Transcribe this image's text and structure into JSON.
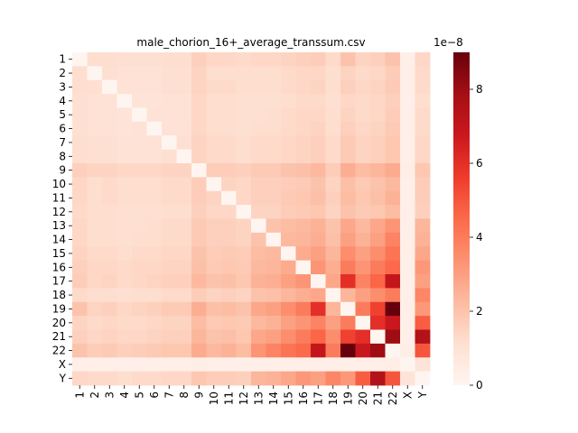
{
  "chart_data": {
    "type": "heatmap",
    "title": "male_chorion_16+_average_transsum.csv",
    "xlabel": "",
    "ylabel": "",
    "x_categories": [
      "1",
      "2",
      "3",
      "4",
      "5",
      "6",
      "7",
      "8",
      "9",
      "10",
      "11",
      "12",
      "13",
      "14",
      "15",
      "16",
      "17",
      "18",
      "19",
      "20",
      "21",
      "22",
      "X",
      "Y"
    ],
    "y_categories": [
      "1",
      "2",
      "3",
      "4",
      "5",
      "6",
      "7",
      "8",
      "9",
      "10",
      "11",
      "12",
      "13",
      "14",
      "15",
      "16",
      "17",
      "18",
      "19",
      "20",
      "21",
      "22",
      "X",
      "Y"
    ],
    "colormap": "Reds",
    "colorbar": {
      "min": 0,
      "max": 9,
      "ticks": [
        0,
        2,
        4,
        6,
        8
      ],
      "tick_labels": [
        "0",
        "2",
        "4",
        "6",
        "8"
      ],
      "offset_label": "1e−8"
    },
    "diagonal": "blank",
    "values_note": "",
    "values": [
      [
        0,
        1.2,
        1.2,
        1.1,
        1.1,
        1.1,
        1.2,
        1.2,
        1.6,
        1.4,
        1.4,
        1.3,
        1.4,
        1.4,
        1.5,
        1.6,
        1.7,
        1.3,
        2.0,
        1.5,
        1.6,
        2.0,
        0.3,
        1.4
      ],
      [
        1.2,
        0,
        1.1,
        1.0,
        1.0,
        1.0,
        1.1,
        1.1,
        1.5,
        1.2,
        1.2,
        1.2,
        1.2,
        1.2,
        1.3,
        1.4,
        1.4,
        1.2,
        1.5,
        1.3,
        1.4,
        1.7,
        0.3,
        1.3
      ],
      [
        1.2,
        1.1,
        0,
        1.0,
        1.0,
        1.0,
        1.1,
        1.1,
        1.5,
        1.3,
        1.3,
        1.2,
        1.2,
        1.2,
        1.3,
        1.4,
        1.5,
        1.2,
        1.6,
        1.4,
        1.5,
        1.8,
        0.3,
        1.3
      ],
      [
        1.1,
        1.0,
        1.0,
        0,
        0.9,
        0.9,
        1.0,
        1.0,
        1.4,
        1.2,
        1.2,
        1.1,
        1.1,
        1.1,
        1.2,
        1.3,
        1.3,
        1.1,
        1.4,
        1.3,
        1.4,
        1.6,
        0.3,
        1.2
      ],
      [
        1.1,
        1.0,
        1.0,
        0.9,
        0,
        1.0,
        1.0,
        1.0,
        1.4,
        1.2,
        1.2,
        1.1,
        1.1,
        1.2,
        1.3,
        1.4,
        1.4,
        1.2,
        1.5,
        1.3,
        1.4,
        1.7,
        0.3,
        1.3
      ],
      [
        1.1,
        1.0,
        1.0,
        0.9,
        1.0,
        0,
        1.0,
        1.0,
        1.4,
        1.2,
        1.2,
        1.1,
        1.2,
        1.2,
        1.3,
        1.4,
        1.5,
        1.2,
        1.6,
        1.4,
        1.5,
        1.8,
        0.3,
        1.3
      ],
      [
        1.2,
        1.1,
        1.1,
        1.0,
        1.0,
        1.0,
        0,
        1.1,
        1.5,
        1.3,
        1.3,
        1.2,
        1.3,
        1.3,
        1.4,
        1.5,
        1.6,
        1.3,
        1.8,
        1.5,
        1.6,
        1.9,
        0.3,
        1.4
      ],
      [
        1.2,
        1.1,
        1.1,
        1.0,
        1.0,
        1.0,
        1.1,
        0,
        1.5,
        1.3,
        1.3,
        1.2,
        1.3,
        1.3,
        1.4,
        1.5,
        1.6,
        1.3,
        1.8,
        1.5,
        1.6,
        1.9,
        0.3,
        1.4
      ],
      [
        1.6,
        1.5,
        1.5,
        1.4,
        1.4,
        1.4,
        1.5,
        1.5,
        0,
        1.7,
        1.7,
        1.6,
        1.8,
        1.8,
        2.0,
        2.1,
        2.3,
        1.7,
        2.6,
        2.2,
        2.4,
        2.7,
        0.4,
        1.9
      ],
      [
        1.4,
        1.2,
        1.3,
        1.2,
        1.2,
        1.2,
        1.3,
        1.3,
        1.7,
        0,
        1.5,
        1.4,
        1.6,
        1.6,
        1.7,
        1.8,
        2.0,
        1.5,
        2.1,
        1.8,
        2.0,
        2.3,
        0.3,
        1.7
      ],
      [
        1.4,
        1.2,
        1.3,
        1.2,
        1.2,
        1.2,
        1.3,
        1.3,
        1.7,
        1.5,
        0,
        1.4,
        1.6,
        1.6,
        1.8,
        1.9,
        2.1,
        1.6,
        2.2,
        1.9,
        2.1,
        2.5,
        0.3,
        1.7
      ],
      [
        1.3,
        1.2,
        1.2,
        1.1,
        1.1,
        1.1,
        1.2,
        1.2,
        1.6,
        1.4,
        1.4,
        0,
        1.5,
        1.5,
        1.7,
        1.8,
        1.9,
        1.5,
        2.0,
        1.8,
        1.9,
        2.2,
        0.3,
        1.6
      ],
      [
        1.4,
        1.2,
        1.2,
        1.1,
        1.1,
        1.2,
        1.3,
        1.3,
        1.8,
        1.6,
        1.6,
        1.5,
        0,
        2.0,
        2.2,
        2.3,
        2.5,
        2.0,
        2.8,
        2.3,
        2.8,
        3.3,
        0.3,
        2.4
      ],
      [
        1.4,
        1.2,
        1.2,
        1.1,
        1.2,
        1.2,
        1.3,
        1.3,
        1.8,
        1.6,
        1.6,
        1.5,
        2.0,
        0,
        2.3,
        2.4,
        2.6,
        2.1,
        3.0,
        2.5,
        3.0,
        3.8,
        0.3,
        2.5
      ],
      [
        1.5,
        1.3,
        1.3,
        1.2,
        1.3,
        1.3,
        1.4,
        1.4,
        2.0,
        1.7,
        1.8,
        1.7,
        2.2,
        2.3,
        0,
        2.7,
        3.0,
        2.4,
        3.5,
        3.0,
        3.5,
        4.2,
        0.3,
        2.8
      ],
      [
        1.6,
        1.4,
        1.4,
        1.3,
        1.4,
        1.4,
        1.5,
        1.5,
        2.1,
        1.8,
        1.9,
        1.8,
        2.3,
        2.4,
        2.7,
        0,
        3.3,
        2.6,
        4.0,
        3.3,
        4.0,
        4.5,
        0.3,
        3.2
      ],
      [
        1.7,
        1.4,
        1.5,
        1.3,
        1.4,
        1.5,
        1.6,
        1.6,
        2.3,
        2.0,
        2.1,
        1.9,
        2.5,
        2.6,
        3.0,
        3.3,
        0,
        2.8,
        6.0,
        3.8,
        4.6,
        7.0,
        0.3,
        3.0
      ],
      [
        1.3,
        1.2,
        1.2,
        1.1,
        1.2,
        1.2,
        1.3,
        1.3,
        1.7,
        1.5,
        1.6,
        1.5,
        2.0,
        2.1,
        2.4,
        2.6,
        2.8,
        0,
        2.4,
        3.0,
        3.5,
        4.0,
        0.3,
        3.7
      ],
      [
        2.0,
        1.5,
        1.6,
        1.4,
        1.5,
        1.6,
        1.8,
        1.8,
        2.6,
        2.1,
        2.2,
        2.0,
        2.8,
        3.0,
        3.5,
        4.0,
        6.0,
        2.4,
        0,
        4.0,
        5.5,
        9.0,
        0.3,
        3.2
      ],
      [
        1.5,
        1.3,
        1.4,
        1.3,
        1.3,
        1.4,
        1.5,
        1.5,
        2.2,
        1.8,
        1.9,
        1.8,
        2.3,
        2.5,
        3.0,
        3.3,
        3.8,
        3.0,
        4.0,
        0,
        6.0,
        6.8,
        0.3,
        4.8
      ],
      [
        1.6,
        1.4,
        1.5,
        1.4,
        1.4,
        1.5,
        1.6,
        1.6,
        2.4,
        2.0,
        2.1,
        1.9,
        2.8,
        3.0,
        3.5,
        4.0,
        4.6,
        3.5,
        5.5,
        6.0,
        0,
        8.0,
        0.3,
        7.5
      ],
      [
        2.0,
        1.7,
        1.8,
        1.6,
        1.7,
        1.8,
        1.9,
        1.9,
        2.7,
        2.3,
        2.5,
        2.2,
        3.3,
        3.8,
        4.2,
        4.5,
        7.0,
        4.0,
        9.0,
        6.8,
        8.0,
        0,
        0.4,
        5.0
      ],
      [
        0.3,
        0.3,
        0.3,
        0.3,
        0.3,
        0.3,
        0.3,
        0.3,
        0.4,
        0.3,
        0.3,
        0.3,
        0.3,
        0.3,
        0.3,
        0.3,
        0.3,
        0.3,
        0.3,
        0.3,
        0.3,
        0.4,
        0,
        0.9
      ],
      [
        1.4,
        1.3,
        1.3,
        1.2,
        1.3,
        1.3,
        1.4,
        1.4,
        1.9,
        1.7,
        1.7,
        1.6,
        2.4,
        2.5,
        2.8,
        3.2,
        3.0,
        3.7,
        3.2,
        4.8,
        7.5,
        5.0,
        0.9,
        0
      ]
    ]
  }
}
